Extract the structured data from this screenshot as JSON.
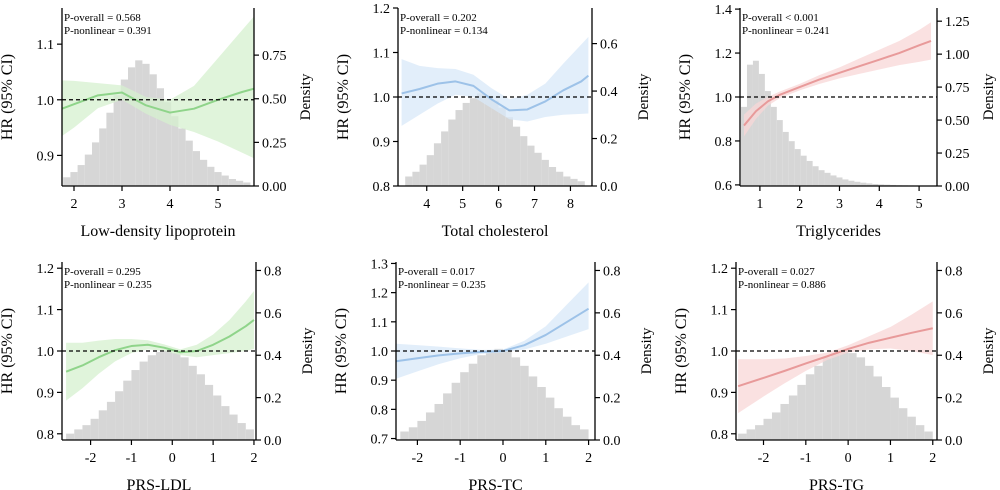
{
  "chart_data": [
    {
      "type": "line",
      "xlabel": "Low-density lipoprotein",
      "ylabel": "HR (95% CI)",
      "y2label": "Density",
      "stats": [
        "P-overall = 0.568",
        "P-nonlinear = 0.391"
      ],
      "color": "#8fd48a",
      "band_color": "#d5f0cf",
      "xlim": [
        1.75,
        5.75
      ],
      "ylim": [
        0.845,
        1.165
      ],
      "y2lim": [
        0,
        1.02
      ],
      "xticks": [
        2,
        3,
        4,
        5
      ],
      "yticks": [
        0.9,
        1.0,
        1.1
      ],
      "y2ticks": [
        0.0,
        0.25,
        0.5,
        0.75
      ],
      "reference_hr": 1.0,
      "x": [
        1.75,
        2.0,
        2.5,
        3.0,
        3.5,
        4.0,
        4.5,
        5.0,
        5.5,
        5.75
      ],
      "hr": [
        0.984,
        0.992,
        1.008,
        1.013,
        0.99,
        0.977,
        0.984,
        1.0,
        1.014,
        1.02
      ],
      "lower": [
        0.935,
        0.95,
        0.985,
        1.0,
        0.975,
        0.955,
        0.942,
        0.925,
        0.905,
        0.895
      ],
      "upper": [
        1.035,
        1.034,
        1.03,
        1.026,
        1.005,
        1.0,
        1.025,
        1.075,
        1.125,
        1.15
      ],
      "hist_x": [
        1.85,
        2.0,
        2.15,
        2.3,
        2.45,
        2.6,
        2.75,
        2.9,
        3.05,
        3.2,
        3.35,
        3.5,
        3.65,
        3.8,
        3.95,
        4.1,
        4.25,
        4.4,
        4.55,
        4.7,
        4.85,
        5.0,
        5.15,
        5.3,
        5.45,
        5.6
      ],
      "hist_density": [
        0.05,
        0.08,
        0.12,
        0.18,
        0.25,
        0.33,
        0.42,
        0.52,
        0.61,
        0.68,
        0.72,
        0.7,
        0.64,
        0.56,
        0.48,
        0.4,
        0.33,
        0.26,
        0.2,
        0.15,
        0.11,
        0.08,
        0.06,
        0.04,
        0.03,
        0.02
      ]
    },
    {
      "type": "line",
      "xlabel": "Total cholesterol",
      "ylabel": "HR (95% CI)",
      "y2label": "Density",
      "stats": [
        "P-overall = 0.202",
        "P-nonlinear = 0.134"
      ],
      "color": "#9dc2e8",
      "band_color": "#d8e8f8",
      "xlim": [
        3.2,
        8.6
      ],
      "ylim": [
        0.8,
        1.2
      ],
      "y2lim": [
        0,
        0.75
      ],
      "xticks": [
        4,
        5,
        6,
        7,
        8
      ],
      "yticks": [
        0.8,
        0.9,
        1.0,
        1.1,
        1.2
      ],
      "y2ticks": [
        0.0,
        0.2,
        0.4,
        0.6
      ],
      "reference_hr": 1.0,
      "x": [
        3.3,
        3.8,
        4.3,
        4.8,
        5.3,
        5.8,
        6.3,
        6.8,
        7.3,
        7.8,
        8.3,
        8.5
      ],
      "hr": [
        1.008,
        1.018,
        1.03,
        1.035,
        1.025,
        0.995,
        0.97,
        0.972,
        0.99,
        1.015,
        1.035,
        1.048
      ],
      "lower": [
        0.935,
        0.96,
        0.985,
        1.005,
        1.0,
        0.975,
        0.95,
        0.945,
        0.955,
        0.96,
        0.962,
        0.963
      ],
      "upper": [
        1.085,
        1.07,
        1.065,
        1.063,
        1.05,
        1.02,
        0.995,
        1.005,
        1.03,
        1.075,
        1.118,
        1.135
      ],
      "hist_x": [
        3.5,
        3.7,
        3.9,
        4.1,
        4.3,
        4.5,
        4.7,
        4.9,
        5.1,
        5.3,
        5.5,
        5.7,
        5.9,
        6.1,
        6.3,
        6.5,
        6.7,
        6.9,
        7.1,
        7.3,
        7.5,
        7.7,
        7.9,
        8.1,
        8.3
      ],
      "hist_density": [
        0.04,
        0.06,
        0.09,
        0.13,
        0.18,
        0.23,
        0.28,
        0.32,
        0.35,
        0.37,
        0.39,
        0.38,
        0.36,
        0.33,
        0.29,
        0.25,
        0.21,
        0.17,
        0.14,
        0.11,
        0.08,
        0.06,
        0.04,
        0.03,
        0.02
      ]
    },
    {
      "type": "line",
      "xlabel": "Triglycerides",
      "ylabel": "HR (95% CI)",
      "y2label": "Density",
      "stats": [
        "P-overall < 0.001",
        "P-nonlinear = 0.241"
      ],
      "color": "#e89a9a",
      "band_color": "#f8d7d7",
      "xlim": [
        0.5,
        5.45
      ],
      "ylim": [
        0.595,
        1.405
      ],
      "y2lim": [
        0,
        1.35
      ],
      "xticks": [
        1,
        2,
        3,
        4,
        5
      ],
      "yticks": [
        0.6,
        0.8,
        1.0,
        1.2,
        1.4
      ],
      "y2ticks": [
        0.0,
        0.25,
        0.5,
        0.75,
        1.0,
        1.25
      ],
      "reference_hr": 1.0,
      "x": [
        0.6,
        0.9,
        1.2,
        1.5,
        2.0,
        2.5,
        3.0,
        3.5,
        4.0,
        4.5,
        5.0,
        5.3
      ],
      "hr": [
        0.87,
        0.935,
        0.98,
        1.01,
        1.045,
        1.08,
        1.11,
        1.14,
        1.17,
        1.2,
        1.235,
        1.255
      ],
      "lower": [
        0.82,
        0.9,
        0.96,
        0.995,
        1.03,
        1.06,
        1.085,
        1.105,
        1.125,
        1.145,
        1.16,
        1.17
      ],
      "upper": [
        0.92,
        0.97,
        1.0,
        1.025,
        1.06,
        1.1,
        1.135,
        1.175,
        1.215,
        1.255,
        1.305,
        1.34
      ],
      "hist_x": [
        0.6,
        0.75,
        0.9,
        1.05,
        1.2,
        1.35,
        1.5,
        1.65,
        1.8,
        1.95,
        2.1,
        2.25,
        2.4,
        2.55,
        2.7,
        2.85,
        3.0,
        3.15,
        3.3,
        3.45,
        3.6,
        3.75,
        3.9,
        4.05,
        4.2,
        4.35,
        4.5,
        4.65,
        4.8,
        4.95,
        5.1
      ],
      "hist_density": [
        0.6,
        0.92,
        0.95,
        0.85,
        0.72,
        0.6,
        0.5,
        0.41,
        0.34,
        0.28,
        0.23,
        0.19,
        0.15,
        0.12,
        0.1,
        0.08,
        0.065,
        0.05,
        0.04,
        0.032,
        0.025,
        0.02,
        0.015,
        0.012,
        0.01,
        0.008,
        0.006,
        0.005,
        0.004,
        0.003,
        0.002
      ]
    },
    {
      "type": "line",
      "xlabel": "PRS-LDL",
      "ylabel": "HR (95% CI)",
      "y2label": "Density",
      "stats": [
        "P-overall = 0.295",
        "P-nonlinear = 0.235"
      ],
      "color": "#8fd48a",
      "band_color": "#d5f0cf",
      "xlim": [
        -2.7,
        2.05
      ],
      "ylim": [
        0.785,
        1.215
      ],
      "y2lim": [
        0,
        0.84
      ],
      "xticks": [
        -2,
        -1,
        0,
        1,
        2
      ],
      "yticks": [
        0.8,
        0.9,
        1.0,
        1.1,
        1.2
      ],
      "y2ticks": [
        0.0,
        0.2,
        0.4,
        0.6,
        0.8
      ],
      "reference_hr": 1.0,
      "x": [
        -2.6,
        -2.2,
        -1.8,
        -1.4,
        -1.0,
        -0.6,
        -0.2,
        0.2,
        0.6,
        1.0,
        1.4,
        1.8,
        2.0
      ],
      "hr": [
        0.95,
        0.965,
        0.985,
        1.002,
        1.012,
        1.015,
        1.008,
        0.997,
        1.0,
        1.015,
        1.035,
        1.06,
        1.075
      ],
      "lower": [
        0.88,
        0.91,
        0.945,
        0.975,
        0.995,
        1.004,
        1.0,
        0.99,
        0.985,
        0.99,
        0.995,
        1.0,
        1.005
      ],
      "upper": [
        1.02,
        1.02,
        1.025,
        1.029,
        1.029,
        1.026,
        1.016,
        1.004,
        1.015,
        1.04,
        1.075,
        1.12,
        1.145
      ],
      "hist_x": [
        -2.5,
        -2.3,
        -2.1,
        -1.9,
        -1.7,
        -1.5,
        -1.3,
        -1.1,
        -0.9,
        -0.7,
        -0.5,
        -0.3,
        -0.1,
        0.1,
        0.3,
        0.5,
        0.7,
        0.9,
        1.1,
        1.3,
        1.5,
        1.7,
        1.9
      ],
      "hist_density": [
        0.03,
        0.05,
        0.07,
        0.1,
        0.14,
        0.18,
        0.23,
        0.28,
        0.33,
        0.37,
        0.4,
        0.415,
        0.42,
        0.41,
        0.39,
        0.35,
        0.31,
        0.26,
        0.21,
        0.16,
        0.12,
        0.08,
        0.05
      ]
    },
    {
      "type": "line",
      "xlabel": "PRS-TC",
      "ylabel": "HR (95% CI)",
      "y2label": "Density",
      "stats": [
        "P-overall = 0.017",
        "P-nonlinear = 0.235"
      ],
      "color": "#9dc2e8",
      "band_color": "#d8e8f8",
      "xlim": [
        -2.5,
        2.15
      ],
      "ylim": [
        0.695,
        1.305
      ],
      "y2lim": [
        0,
        0.84
      ],
      "xticks": [
        -2,
        -1,
        0,
        1,
        2
      ],
      "yticks": [
        0.7,
        0.8,
        0.9,
        1.0,
        1.1,
        1.2,
        1.3
      ],
      "y2ticks": [
        0.0,
        0.2,
        0.4,
        0.6,
        0.8
      ],
      "reference_hr": 1.0,
      "x": [
        -2.5,
        -2.0,
        -1.5,
        -1.0,
        -0.5,
        0.0,
        0.5,
        1.0,
        1.5,
        2.0
      ],
      "hr": [
        0.965,
        0.975,
        0.985,
        0.992,
        0.997,
        1.0,
        1.02,
        1.055,
        1.1,
        1.145
      ],
      "lower": [
        0.905,
        0.93,
        0.955,
        0.975,
        0.99,
        0.995,
        1.005,
        1.025,
        1.05,
        1.075
      ],
      "upper": [
        1.025,
        1.02,
        1.015,
        1.009,
        1.004,
        1.005,
        1.035,
        1.085,
        1.16,
        1.235
      ],
      "hist_x": [
        -2.3,
        -2.1,
        -1.9,
        -1.7,
        -1.5,
        -1.3,
        -1.1,
        -0.9,
        -0.7,
        -0.5,
        -0.3,
        -0.1,
        0.1,
        0.3,
        0.5,
        0.7,
        0.9,
        1.1,
        1.3,
        1.5,
        1.7,
        1.9
      ],
      "hist_density": [
        0.04,
        0.06,
        0.09,
        0.13,
        0.17,
        0.22,
        0.27,
        0.32,
        0.36,
        0.4,
        0.42,
        0.43,
        0.42,
        0.39,
        0.35,
        0.3,
        0.25,
        0.2,
        0.15,
        0.11,
        0.07,
        0.05
      ]
    },
    {
      "type": "line",
      "xlabel": "PRS-TG",
      "ylabel": "HR (95% CI)",
      "y2label": "Density",
      "stats": [
        "P-overall = 0.027",
        "P-nonlinear = 0.886"
      ],
      "color": "#e89a9a",
      "band_color": "#f8d7d7",
      "xlim": [
        -2.65,
        2.1
      ],
      "ylim": [
        0.785,
        1.215
      ],
      "y2lim": [
        0,
        0.84
      ],
      "xticks": [
        -2,
        -1,
        0,
        1,
        2
      ],
      "yticks": [
        0.8,
        0.9,
        1.0,
        1.1,
        1.2
      ],
      "y2ticks": [
        0.0,
        0.2,
        0.4,
        0.6,
        0.8
      ],
      "reference_hr": 1.0,
      "x": [
        -2.6,
        -2.0,
        -1.5,
        -1.0,
        -0.5,
        0.0,
        0.5,
        1.0,
        1.5,
        2.0
      ],
      "hr": [
        0.915,
        0.935,
        0.952,
        0.97,
        0.987,
        1.005,
        1.02,
        1.032,
        1.044,
        1.055
      ],
      "lower": [
        0.85,
        0.89,
        0.922,
        0.952,
        0.978,
        0.996,
        1.004,
        1.006,
        1.0,
        0.99
      ],
      "upper": [
        0.98,
        0.98,
        0.982,
        0.988,
        0.996,
        1.014,
        1.036,
        1.058,
        1.088,
        1.12
      ],
      "hist_x": [
        -2.5,
        -2.3,
        -2.1,
        -1.9,
        -1.7,
        -1.5,
        -1.3,
        -1.1,
        -0.9,
        -0.7,
        -0.5,
        -0.3,
        -0.1,
        0.1,
        0.3,
        0.5,
        0.7,
        0.9,
        1.1,
        1.3,
        1.5,
        1.7,
        1.9
      ],
      "hist_density": [
        0.03,
        0.05,
        0.07,
        0.1,
        0.13,
        0.17,
        0.21,
        0.26,
        0.31,
        0.35,
        0.39,
        0.41,
        0.42,
        0.41,
        0.39,
        0.35,
        0.3,
        0.25,
        0.2,
        0.15,
        0.11,
        0.07,
        0.04
      ]
    }
  ]
}
